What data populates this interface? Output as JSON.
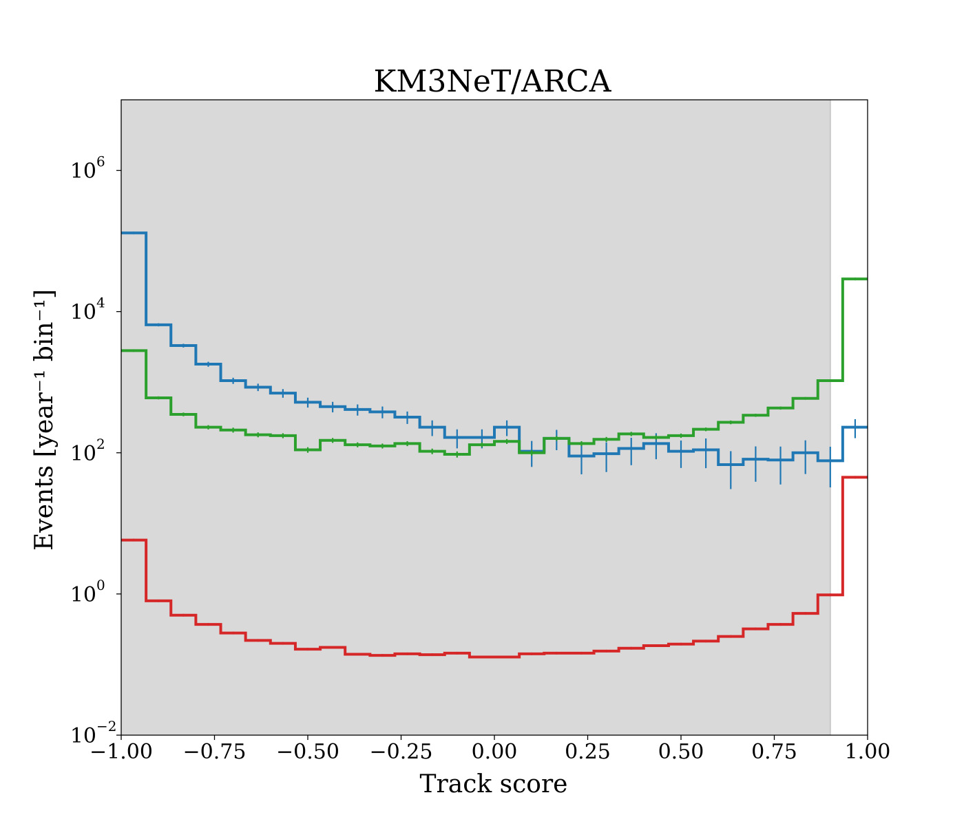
{
  "chart_data": {
    "type": "line",
    "title": "KM3NeT/ARCA",
    "xlabel": "Track score",
    "ylabel": "Events [year⁻¹ bin⁻¹]",
    "xlim": [
      -1.0,
      1.0
    ],
    "ylim_log10": [
      -2,
      7
    ],
    "yscale": "log",
    "grid": false,
    "x_ticks": [
      -1.0,
      -0.75,
      -0.5,
      -0.25,
      0.0,
      0.25,
      0.5,
      0.75,
      1.0
    ],
    "x_tick_labels": [
      "−1.00",
      "−0.75",
      "−0.50",
      "−0.25",
      "0.00",
      "0.25",
      "0.50",
      "0.75",
      "1.00"
    ],
    "y_ticks": [
      {
        "base": "10",
        "exp": "6"
      },
      {
        "base": "10",
        "exp": "4"
      },
      {
        "base": "10",
        "exp": "2"
      },
      {
        "base": "10",
        "exp": "0"
      },
      {
        "base": "10",
        "exp": "−2"
      }
    ],
    "y_tick_values_log10": [
      6,
      4,
      2,
      0,
      -2
    ],
    "shaded_region": {
      "x": [
        -1.0,
        0.9
      ],
      "color": "#d9d9d9"
    },
    "bin_edges": [
      -1.0,
      -0.9333,
      -0.8667,
      -0.8,
      -0.7333,
      -0.6667,
      -0.6,
      -0.5333,
      -0.4667,
      -0.4,
      -0.3333,
      -0.2667,
      -0.2,
      -0.1333,
      -0.0667,
      0.0,
      0.0667,
      0.1333,
      0.2,
      0.2667,
      0.3333,
      0.4,
      0.4667,
      0.5333,
      0.6,
      0.6667,
      0.7333,
      0.8,
      0.8667,
      0.9333,
      1.0
    ],
    "series": [
      {
        "color": "#1f77b4",
        "values": [
          130000,
          6500,
          3300,
          1800,
          1050,
          850,
          700,
          520,
          450,
          410,
          380,
          320,
          230,
          165,
          165,
          230,
          105,
          160,
          90,
          97,
          115,
          135,
          105,
          110,
          68,
          81,
          79,
          100,
          77,
          230
        ],
        "rel_errors": [
          0.02,
          0.05,
          0.06,
          0.08,
          0.1,
          0.12,
          0.14,
          0.16,
          0.17,
          0.18,
          0.19,
          0.2,
          0.25,
          0.3,
          0.3,
          0.25,
          0.4,
          0.32,
          0.45,
          0.45,
          0.42,
          0.4,
          0.42,
          0.45,
          0.55,
          0.52,
          0.55,
          0.5,
          0.58,
          0.3
        ]
      },
      {
        "color": "#2ca02c",
        "values": [
          2800,
          600,
          350,
          230,
          210,
          180,
          175,
          110,
          150,
          130,
          125,
          135,
          105,
          95,
          130,
          145,
          100,
          160,
          135,
          155,
          185,
          165,
          175,
          215,
          270,
          340,
          430,
          590,
          1050,
          29000
        ],
        "rel_errors": [
          0.03,
          0.05,
          0.06,
          0.07,
          0.08,
          0.08,
          0.08,
          0.09,
          0.08,
          0.08,
          0.08,
          0.08,
          0.09,
          0.1,
          0.08,
          0.08,
          0.09,
          0.08,
          0.08,
          0.08,
          0.07,
          0.07,
          0.07,
          0.06,
          0.06,
          0.05,
          0.05,
          0.04,
          0.03,
          0.01
        ]
      },
      {
        "color": "#d62728",
        "values": [
          5.8,
          0.8,
          0.5,
          0.37,
          0.28,
          0.22,
          0.2,
          0.165,
          0.175,
          0.14,
          0.135,
          0.142,
          0.138,
          0.145,
          0.128,
          0.128,
          0.142,
          0.145,
          0.145,
          0.155,
          0.17,
          0.185,
          0.195,
          0.215,
          0.25,
          0.32,
          0.37,
          0.53,
          0.97,
          45
        ],
        "rel_errors": [
          0.02,
          0.02,
          0.02,
          0.02,
          0.02,
          0.02,
          0.02,
          0.02,
          0.02,
          0.02,
          0.02,
          0.02,
          0.02,
          0.02,
          0.02,
          0.02,
          0.02,
          0.02,
          0.02,
          0.02,
          0.02,
          0.02,
          0.02,
          0.02,
          0.02,
          0.02,
          0.02,
          0.02,
          0.02,
          0.02
        ]
      }
    ]
  }
}
